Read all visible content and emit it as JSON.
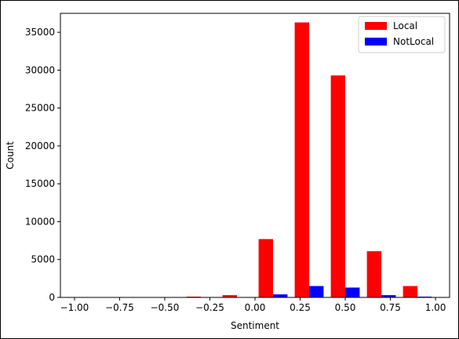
{
  "chart_data": {
    "type": "histogram",
    "xlabel": "Sentiment",
    "ylabel": "Count",
    "bins": [
      -1,
      -0.8,
      -0.6,
      -0.4,
      -0.2,
      0,
      0.2,
      0.4,
      0.6,
      0.8,
      1
    ],
    "series": [
      {
        "name": "Local",
        "color": "#ff0000",
        "values": [
          20,
          30,
          40,
          100,
          300,
          7700,
          36300,
          29300,
          6100,
          1500
        ]
      },
      {
        "name": "NotLocal",
        "color": "#0000ff",
        "values": [
          5,
          5,
          5,
          10,
          20,
          400,
          1500,
          1300,
          300,
          100
        ]
      }
    ],
    "xlim": [
      -1.078,
      1.078
    ],
    "ylim": [
      0,
      37500
    ],
    "xticks": [
      {
        "value": -1,
        "label": "−1.00"
      },
      {
        "value": -0.75,
        "label": "−0.75"
      },
      {
        "value": -0.5,
        "label": "−0.50"
      },
      {
        "value": -0.25,
        "label": "−0.25"
      },
      {
        "value": 0,
        "label": "0.00"
      },
      0.25,
      {
        "value": 0.5,
        "label": "0.50"
      },
      0.75,
      {
        "value": 1,
        "label": "1.00"
      }
    ],
    "yticks": [
      0,
      5000,
      10000,
      15000,
      20000,
      25000,
      30000,
      35000
    ],
    "legend": "upper right",
    "grid": false
  }
}
